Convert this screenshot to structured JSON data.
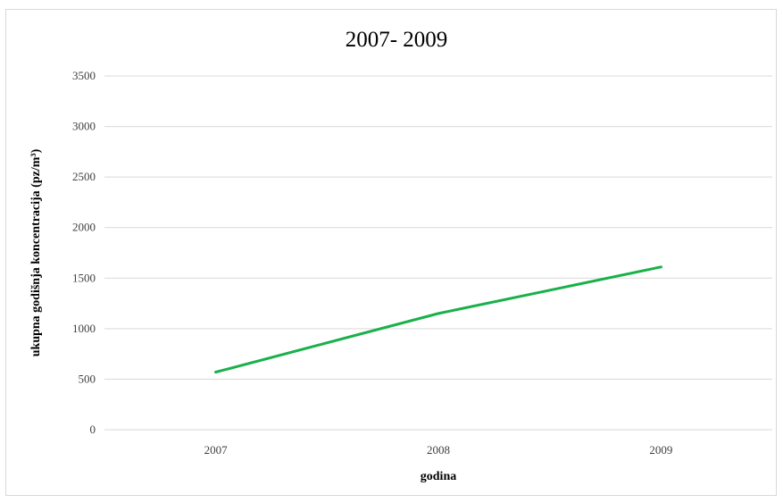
{
  "chart_data": {
    "type": "line",
    "title": "2007- 2009",
    "xlabel": "godina",
    "ylabel": "ukupna godišnja koncentracija (pz/m³)",
    "categories": [
      "2007",
      "2008",
      "2009"
    ],
    "series": [
      {
        "values": [
          570,
          1150,
          1610
        ],
        "color": "#1ab04a"
      }
    ],
    "ylim": [
      0,
      3500
    ],
    "yticks": [
      0,
      500,
      1000,
      1500,
      2000,
      2500,
      3000,
      3500
    ],
    "grid": true,
    "legend": "none"
  }
}
